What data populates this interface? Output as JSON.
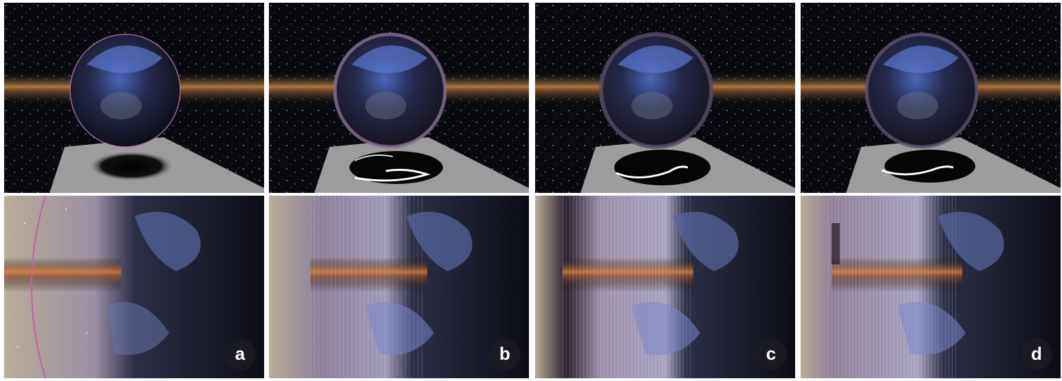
{
  "figure": {
    "panels": [
      {
        "label": "a"
      },
      {
        "label": "b"
      },
      {
        "label": "c"
      },
      {
        "label": "d"
      }
    ]
  }
}
